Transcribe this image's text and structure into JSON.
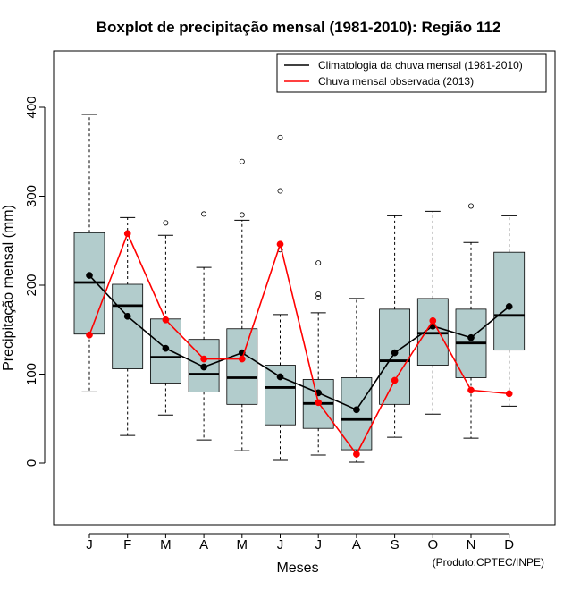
{
  "chart_data": {
    "type": "boxplot",
    "title": "Boxplot de precipitação mensal (1981-2010): Região 112",
    "xlabel": "Meses",
    "ylabel": "Precipitação mensal (mm)",
    "ylim": [
      -70,
      470
    ],
    "yticks": [
      0,
      100,
      200,
      300,
      400
    ],
    "categories": [
      "J",
      "F",
      "M",
      "A",
      "M",
      "J",
      "J",
      "A",
      "S",
      "O",
      "N",
      "D"
    ],
    "boxes": [
      {
        "min": 80,
        "q1": 145,
        "median": 203,
        "q3": 259,
        "max": 392,
        "outliers": []
      },
      {
        "min": 31,
        "q1": 106,
        "median": 177,
        "q3": 201,
        "max": 276,
        "outliers": []
      },
      {
        "min": 54,
        "q1": 90,
        "median": 119,
        "q3": 162,
        "max": 256,
        "outliers": [
          270
        ]
      },
      {
        "min": 26,
        "q1": 80,
        "median": 100,
        "q3": 139,
        "max": 220,
        "outliers": [
          280
        ]
      },
      {
        "min": 14,
        "q1": 66,
        "median": 96,
        "q3": 151,
        "max": 273,
        "outliers": [
          279,
          339
        ]
      },
      {
        "min": 3,
        "q1": 43,
        "median": 85,
        "q3": 110,
        "max": 167,
        "outliers": [
          240,
          306,
          366
        ]
      },
      {
        "min": 9,
        "q1": 39,
        "median": 67,
        "q3": 94,
        "max": 169,
        "outliers": [
          186,
          190,
          225
        ]
      },
      {
        "min": 1,
        "q1": 15,
        "median": 49,
        "q3": 96,
        "max": 185,
        "outliers": []
      },
      {
        "min": 29,
        "q1": 66,
        "median": 115,
        "q3": 173,
        "max": 278,
        "outliers": []
      },
      {
        "min": 55,
        "q1": 110,
        "median": 146,
        "q3": 185,
        "max": 283,
        "outliers": []
      },
      {
        "min": 28,
        "q1": 96,
        "median": 135,
        "q3": 173,
        "max": 248,
        "outliers": [
          289
        ]
      },
      {
        "min": 64,
        "q1": 127,
        "median": 166,
        "q3": 237,
        "max": 278,
        "outliers": []
      }
    ],
    "series": [
      {
        "name": "Climatologia da chuva mensal (1981-2010)",
        "color": "#000000",
        "values": [
          211,
          165,
          129,
          108,
          124,
          97,
          79,
          60,
          124,
          154,
          141,
          176
        ]
      },
      {
        "name": "Chuva mensal observada (2013)",
        "color": "#ff0000",
        "values": [
          144,
          258,
          161,
          117,
          117,
          246,
          68,
          10,
          93,
          160,
          82,
          78
        ]
      }
    ],
    "box_fill": "#b2cccc",
    "legend_position": "top-right",
    "credit": "(Produto:CPTEC/INPE)"
  }
}
